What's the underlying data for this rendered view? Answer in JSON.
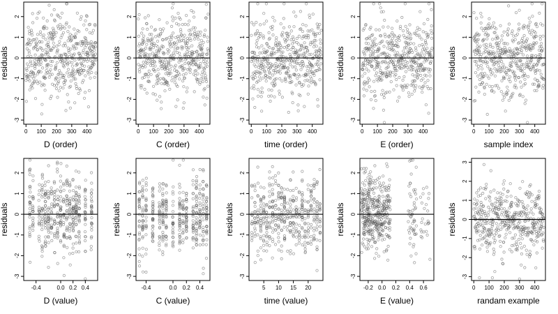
{
  "colors": {
    "background": "#ffffff",
    "points": "#555555",
    "axes": "#000000"
  },
  "chart_data": [
    {
      "type": "scatter",
      "xlabel": "D (order)",
      "ylabel": "residuals",
      "x_ticks": [
        0,
        100,
        200,
        300,
        400
      ],
      "y_ticks": [
        -3,
        -2,
        -1,
        0,
        1,
        2
      ],
      "xlim": [
        -15,
        470
      ],
      "ylim": [
        -3.2,
        2.7
      ],
      "zero_line": 0,
      "x_kind": "index",
      "n_points": 460,
      "seed": 11
    },
    {
      "type": "scatter",
      "xlabel": "C (order)",
      "ylabel": "residuals",
      "x_ticks": [
        0,
        100,
        200,
        300,
        400
      ],
      "y_ticks": [
        -3,
        -2,
        -1,
        0,
        1,
        2
      ],
      "xlim": [
        -15,
        470
      ],
      "ylim": [
        -3.2,
        2.7
      ],
      "zero_line": 0,
      "x_kind": "index",
      "n_points": 460,
      "seed": 23
    },
    {
      "type": "scatter",
      "xlabel": "time (order)",
      "ylabel": "residuals",
      "x_ticks": [
        0,
        100,
        200,
        300,
        400
      ],
      "y_ticks": [
        -3,
        -2,
        -1,
        0,
        1,
        2
      ],
      "xlim": [
        -15,
        470
      ],
      "ylim": [
        -3.2,
        2.7
      ],
      "zero_line": 0,
      "x_kind": "index",
      "n_points": 460,
      "seed": 37
    },
    {
      "type": "scatter",
      "xlabel": "E (order)",
      "ylabel": "residuals",
      "x_ticks": [
        0,
        100,
        200,
        300,
        400
      ],
      "y_ticks": [
        -3,
        -2,
        -1,
        0,
        1,
        2
      ],
      "xlim": [
        -15,
        470
      ],
      "ylim": [
        -3.2,
        2.7
      ],
      "zero_line": 0,
      "x_kind": "index",
      "n_points": 460,
      "seed": 41
    },
    {
      "type": "scatter",
      "xlabel": "sample index",
      "ylabel": "residuals",
      "x_ticks": [
        0,
        100,
        200,
        300,
        400
      ],
      "y_ticks": [
        -3,
        -2,
        -1,
        0,
        1,
        2
      ],
      "xlim": [
        -15,
        470
      ],
      "ylim": [
        -3.2,
        2.7
      ],
      "zero_line": 0,
      "x_kind": "index",
      "n_points": 460,
      "seed": 53
    },
    {
      "type": "scatter",
      "xlabel": "D (value)",
      "ylabel": "residuals",
      "x_ticks": [
        -0.4,
        0.0,
        0.2,
        0.4
      ],
      "x_tick_labels": [
        "-0.4",
        "0.0",
        "0.2",
        "0.4"
      ],
      "y_ticks": [
        -3,
        -2,
        -1,
        0,
        1,
        2
      ],
      "xlim": [
        -0.6,
        0.6
      ],
      "ylim": [
        -3.2,
        2.7
      ],
      "zero_line": 0,
      "x_kind": "value_d",
      "n_points": 460,
      "seed": 61
    },
    {
      "type": "scatter",
      "xlabel": "C (value)",
      "ylabel": "residuals",
      "x_ticks": [
        -0.4,
        0.0,
        0.2,
        0.4
      ],
      "x_tick_labels": [
        "-0.4",
        "0.0",
        "0.2",
        "0.4"
      ],
      "y_ticks": [
        -3,
        -2,
        -1,
        0,
        1,
        2
      ],
      "xlim": [
        -0.55,
        0.55
      ],
      "ylim": [
        -3.2,
        2.7
      ],
      "zero_line": 0,
      "x_kind": "value_c",
      "n_points": 460,
      "seed": 71
    },
    {
      "type": "scatter",
      "xlabel": "time (value)",
      "ylabel": "residuals",
      "x_ticks": [
        5,
        10,
        15,
        20
      ],
      "x_tick_labels": [
        "5",
        "10",
        "15",
        "20"
      ],
      "y_ticks": [
        -3,
        -2,
        -1,
        0,
        1,
        2
      ],
      "xlim": [
        0,
        25
      ],
      "ylim": [
        -3.2,
        2.7
      ],
      "zero_line": 0,
      "x_kind": "value_time",
      "n_points": 460,
      "seed": 83
    },
    {
      "type": "scatter",
      "xlabel": "E (value)",
      "ylabel": "residuals",
      "x_ticks": [
        -0.2,
        0.0,
        0.2,
        0.4,
        0.6
      ],
      "x_tick_labels": [
        "-0.2",
        "0.0",
        "0.2",
        "0.4",
        "0.6"
      ],
      "y_ticks": [
        -3,
        -2,
        -1,
        0,
        1,
        2
      ],
      "xlim": [
        -0.32,
        0.75
      ],
      "ylim": [
        -3.2,
        2.7
      ],
      "zero_line": 0,
      "x_kind": "value_e",
      "n_points": 460,
      "seed": 97
    },
    {
      "type": "scatter",
      "xlabel": "randam example",
      "ylabel": "residuals",
      "x_ticks": [
        0,
        100,
        200,
        300,
        400
      ],
      "y_ticks": [
        -3,
        -2,
        -1,
        0,
        1,
        2,
        3
      ],
      "xlim": [
        -15,
        470
      ],
      "ylim": [
        -3.2,
        3.2
      ],
      "zero_line": 0,
      "x_kind": "index",
      "n_points": 460,
      "seed": 109
    }
  ]
}
